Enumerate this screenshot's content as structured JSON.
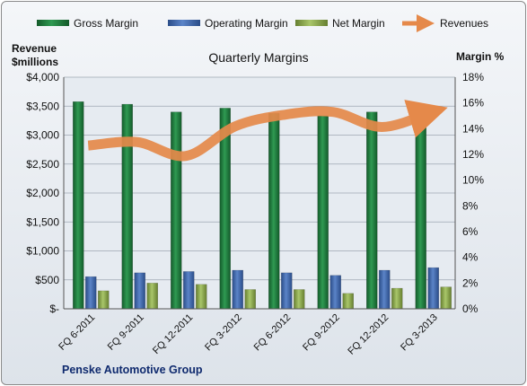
{
  "chart_data": {
    "type": "bar",
    "title": "Quarterly Margins",
    "left_axis_label_line1": "Revenue",
    "left_axis_label_line2": "$millions",
    "right_axis_label": "Margin %",
    "footer": "Penske Automotive Group",
    "categories": [
      "FQ 6-2011",
      "FQ 9-2011",
      "FQ 12-2011",
      "FQ 3-2012",
      "FQ 6-2012",
      "FQ 9-2012",
      "FQ 12-2012",
      "FQ 3-2013"
    ],
    "revenue_axis": {
      "range": [
        0,
        4000
      ],
      "ticks": [
        0,
        500,
        1000,
        1500,
        2000,
        2500,
        3000,
        3500,
        4000
      ],
      "tick_labels": [
        "$-",
        "$500",
        "$1,000",
        "$1,500",
        "$2,000",
        "$2,500",
        "$3,000",
        "$3,500",
        "$4,000"
      ]
    },
    "margin_axis": {
      "range": [
        0,
        18
      ],
      "ticks": [
        0,
        2,
        4,
        6,
        8,
        10,
        12,
        14,
        16,
        18
      ],
      "tick_labels": [
        "0%",
        "2%",
        "4%",
        "6%",
        "8%",
        "10%",
        "12%",
        "14%",
        "16%",
        "18%"
      ]
    },
    "grid": true,
    "legend_position": "top",
    "series": [
      {
        "name": "Gross Margin",
        "type": "bar",
        "axis": "margin",
        "color": "#1e7b3c",
        "values": [
          16.1,
          15.9,
          15.3,
          15.6,
          15.2,
          15.0,
          15.3,
          15.6
        ]
      },
      {
        "name": "Operating Margin",
        "type": "bar",
        "axis": "margin",
        "color": "#3b64a8",
        "values": [
          2.5,
          2.8,
          2.9,
          3.0,
          2.8,
          2.6,
          3.0,
          3.2
        ]
      },
      {
        "name": "Net Margin",
        "type": "bar",
        "axis": "margin",
        "color": "#8aa94a",
        "values": [
          1.4,
          2.0,
          1.9,
          1.5,
          1.5,
          1.2,
          1.6,
          1.7
        ]
      },
      {
        "name": "Revenues",
        "type": "line",
        "axis": "revenue",
        "color": "#e5894a",
        "values": [
          2820,
          2880,
          2640,
          3150,
          3350,
          3400,
          3140,
          3390
        ]
      }
    ]
  }
}
